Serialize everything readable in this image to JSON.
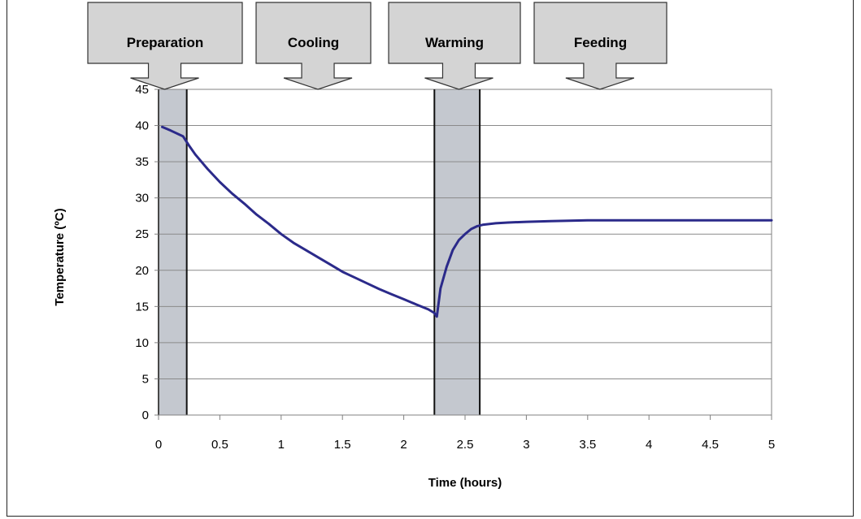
{
  "chart_data": {
    "type": "line",
    "title": "",
    "xlabel": "Time (hours)",
    "ylabel": "Temperature (ºC)",
    "xlim": [
      0,
      5
    ],
    "ylim": [
      0,
      45
    ],
    "x_ticks": [
      "0",
      "0.5",
      "1",
      "1.5",
      "2",
      "2.5",
      "3",
      "3.5",
      "4",
      "4.5",
      "5"
    ],
    "y_ticks": [
      "0",
      "5",
      "10",
      "15",
      "20",
      "25",
      "30",
      "35",
      "40",
      "45"
    ],
    "grid": true,
    "legend": "none",
    "line_color": "#2b2a8a",
    "band_color": "#c4c8cf",
    "phases": [
      {
        "label": "Preparation",
        "x_start": 0.0,
        "x_end": 0.23,
        "shaded": true,
        "arrow_x": 0.05
      },
      {
        "label": "Cooling",
        "x_start": 0.23,
        "x_end": 2.25,
        "shaded": false,
        "arrow_x": 1.3
      },
      {
        "label": "Warming",
        "x_start": 2.25,
        "x_end": 2.62,
        "shaded": true,
        "arrow_x": 2.45
      },
      {
        "label": "Feeding",
        "x_start": 2.62,
        "x_end": 5.0,
        "shaded": false,
        "arrow_x": 3.6
      }
    ],
    "series": [
      {
        "x": [
          0.03,
          0.1,
          0.2,
          0.25,
          0.3,
          0.4,
          0.5,
          0.6,
          0.7,
          0.8,
          0.9,
          1.0,
          1.1,
          1.2,
          1.3,
          1.4,
          1.5,
          1.6,
          1.7,
          1.8,
          1.9,
          2.0,
          2.1,
          2.2,
          2.25,
          2.27,
          2.3,
          2.35,
          2.4,
          2.45,
          2.5,
          2.55,
          2.6,
          2.65,
          2.75,
          2.85,
          3.0,
          3.2,
          3.5,
          4.0,
          4.5,
          5.0
        ],
        "y": [
          39.8,
          39.3,
          38.5,
          37.2,
          36.0,
          34.0,
          32.2,
          30.6,
          29.2,
          27.7,
          26.4,
          25.0,
          23.8,
          22.8,
          21.8,
          20.8,
          19.8,
          19.0,
          18.2,
          17.4,
          16.7,
          16.0,
          15.3,
          14.6,
          14.1,
          13.6,
          17.5,
          20.5,
          22.8,
          24.2,
          25.0,
          25.7,
          26.1,
          26.3,
          26.5,
          26.6,
          26.7,
          26.8,
          26.9,
          26.9,
          26.9,
          26.9
        ]
      }
    ]
  }
}
